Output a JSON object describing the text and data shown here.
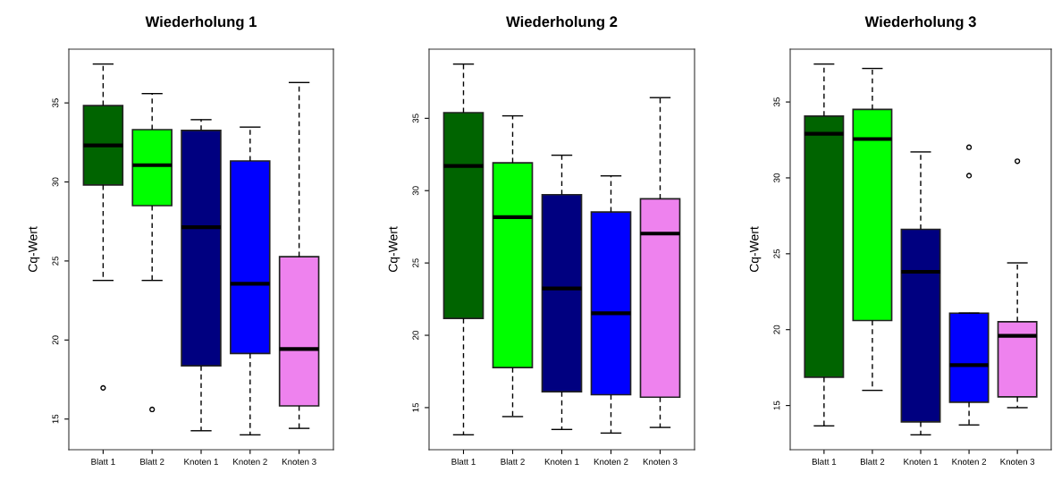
{
  "chart_data": [
    {
      "type": "box",
      "title": "Wiederholung 1",
      "ylabel": "Cq-Wert",
      "categories": [
        "Blatt 1",
        "Blatt 2",
        "Knoten 1",
        "Knoten 2",
        "Knoten 3"
      ],
      "colors": [
        "#006400",
        "#00ff00",
        "#000080",
        "#0000ff",
        "#ee82ee"
      ],
      "ylim": [
        13.06,
        38.4
      ],
      "yticks": [
        15,
        20,
        25,
        30,
        35
      ],
      "grid": false,
      "line_style": "dashed",
      "boxes": [
        {
          "low": 23.77,
          "q1": 29.81,
          "median": 32.31,
          "q3": 34.83,
          "high": 37.46,
          "outliers": [
            16.97
          ]
        },
        {
          "low": 23.77,
          "q1": 28.5,
          "median": 31.06,
          "q3": 33.31,
          "high": 35.59,
          "outliers": [
            15.61
          ]
        },
        {
          "low": 14.26,
          "q1": 18.37,
          "median": 27.14,
          "q3": 33.26,
          "high": 33.94
        },
        {
          "low": 14.0,
          "q1": 19.15,
          "median": 23.56,
          "q3": 31.33,
          "high": 33.47
        },
        {
          "low": 14.41,
          "q1": 15.83,
          "median": 19.43,
          "q3": 25.27,
          "high": 36.29
        }
      ]
    },
    {
      "type": "box",
      "title": "Wiederholung 2",
      "ylabel": "Cq-Wert",
      "categories": [
        "Blatt 1",
        "Blatt 2",
        "Knoten 1",
        "Knoten 2",
        "Knoten 3"
      ],
      "colors": [
        "#006400",
        "#00ff00",
        "#000080",
        "#0000ff",
        "#ee82ee"
      ],
      "ylim": [
        12.09,
        39.78
      ],
      "yticks": [
        15,
        20,
        25,
        30,
        35
      ],
      "grid": false,
      "line_style": "dashed",
      "boxes": [
        {
          "low": 13.12,
          "q1": 21.17,
          "median": 31.71,
          "q3": 35.39,
          "high": 38.75
        },
        {
          "low": 14.38,
          "q1": 17.77,
          "median": 28.17,
          "q3": 31.92,
          "high": 35.17
        },
        {
          "low": 13.49,
          "q1": 16.1,
          "median": 23.24,
          "q3": 29.72,
          "high": 32.45
        },
        {
          "low": 13.24,
          "q1": 15.89,
          "median": 21.52,
          "q3": 28.52,
          "high": 31.02
        },
        {
          "low": 13.63,
          "q1": 15.72,
          "median": 27.03,
          "q3": 29.43,
          "high": 36.43
        }
      ]
    },
    {
      "type": "box",
      "title": "Wiederholung 3",
      "ylabel": "Cq-Wert",
      "categories": [
        "Blatt 1",
        "Blatt 2",
        "Knoten 1",
        "Knoten 2",
        "Knoten 3"
      ],
      "colors": [
        "#006400",
        "#00ff00",
        "#000080",
        "#0000ff",
        "#ee82ee"
      ],
      "ylim": [
        12.09,
        38.48
      ],
      "yticks": [
        15,
        20,
        25,
        30,
        35
      ],
      "grid": false,
      "line_style": "dashed",
      "boxes": [
        {
          "low": 13.66,
          "q1": 16.87,
          "median": 32.91,
          "q3": 34.07,
          "high": 37.5
        },
        {
          "low": 16.0,
          "q1": 20.6,
          "median": 32.56,
          "q3": 34.51,
          "high": 37.21
        },
        {
          "low": 13.07,
          "q1": 13.92,
          "median": 23.81,
          "q3": 26.61,
          "high": 31.71
        },
        {
          "low": 13.72,
          "q1": 15.22,
          "median": 17.66,
          "q3": 21.09,
          "high": 21.09,
          "outliers": [
            32.02,
            30.15
          ]
        },
        {
          "low": 14.86,
          "q1": 15.57,
          "median": 19.59,
          "q3": 20.52,
          "high": 24.4,
          "outliers": [
            31.1
          ]
        }
      ]
    }
  ]
}
